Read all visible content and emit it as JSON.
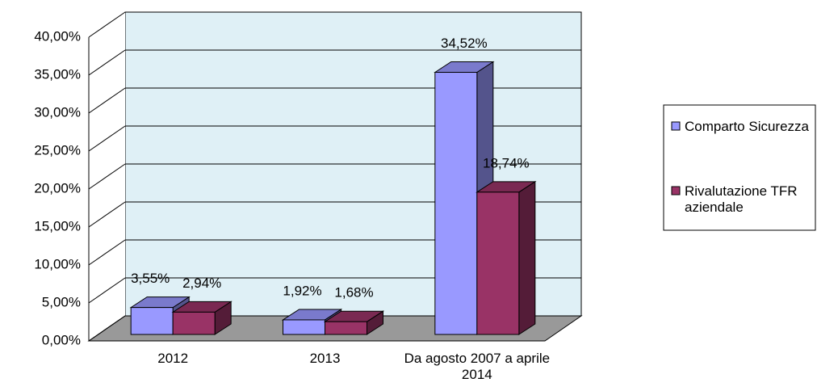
{
  "chart_data": {
    "type": "bar3d",
    "categories": [
      "2012",
      "2013",
      "Da agosto 2007 a aprile 2014"
    ],
    "series": [
      {
        "name": "Comparto Sicurezza",
        "color": "#9999ff",
        "values": [
          3.55,
          1.92,
          34.52
        ],
        "value_labels": [
          "3,55%",
          "1,92%",
          "34,52%"
        ]
      },
      {
        "name": "Rivalutazione TFR aziendale",
        "color": "#993366",
        "values": [
          2.94,
          1.68,
          18.74
        ],
        "value_labels": [
          "2,94%",
          "1,68%",
          "18,74%"
        ]
      }
    ],
    "ylim": [
      0,
      40
    ],
    "yticks": [
      {
        "value": 0,
        "label": "0,00%"
      },
      {
        "value": 5,
        "label": "5,00%"
      },
      {
        "value": 10,
        "label": "10,00%"
      },
      {
        "value": 15,
        "label": "15,00%"
      },
      {
        "value": 20,
        "label": "20,00%"
      },
      {
        "value": 25,
        "label": "25,00%"
      },
      {
        "value": 30,
        "label": "30,00%"
      },
      {
        "value": 35,
        "label": "35,00%"
      },
      {
        "value": 40,
        "label": "40,00%"
      }
    ],
    "grid": true
  }
}
